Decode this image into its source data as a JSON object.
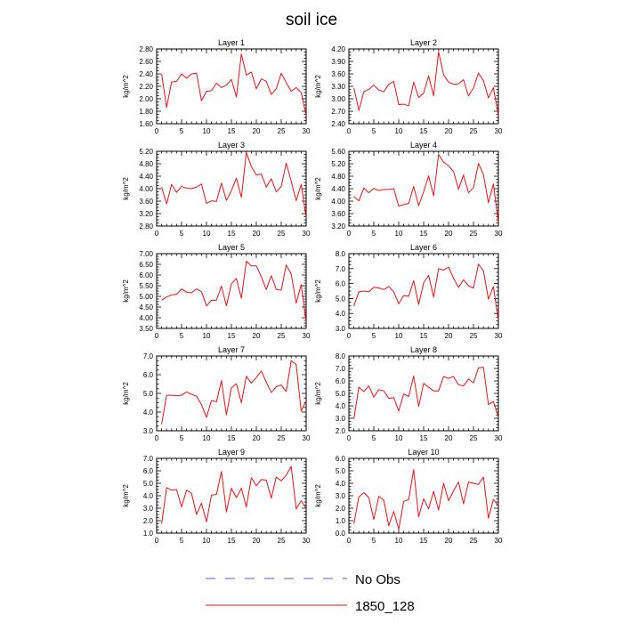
{
  "title": "soil ice",
  "legend": {
    "items": [
      {
        "label": "No Obs",
        "color": "#5555dd",
        "dashed": true
      },
      {
        "label": "1850_128",
        "color": "#ee1111",
        "dashed": false
      }
    ]
  },
  "colors": {
    "series": "#ee1111",
    "axis": "#000000"
  },
  "chart_data": [
    {
      "type": "line",
      "title": "Layer 1",
      "ylabel": "kg/m^2",
      "xlim": [
        0,
        30
      ],
      "ylim": [
        1.6,
        2.8
      ],
      "xticks": [
        "0",
        "5",
        "10",
        "15",
        "20",
        "25",
        "30"
      ],
      "yticks": [
        "1.60",
        "1.80",
        "2.00",
        "2.20",
        "2.40",
        "2.60",
        "2.80"
      ],
      "x": [
        1,
        2,
        3,
        4,
        5,
        6,
        7,
        8,
        9,
        10,
        11,
        12,
        13,
        14,
        15,
        16,
        17,
        18,
        19,
        20,
        21,
        22,
        23,
        24,
        25,
        26,
        27,
        28,
        29,
        30
      ],
      "series": [
        {
          "name": "1850_128",
          "values": [
            2.4,
            1.86,
            2.27,
            2.28,
            2.4,
            2.33,
            2.4,
            2.41,
            1.97,
            2.12,
            2.13,
            2.25,
            2.18,
            2.22,
            2.31,
            2.03,
            2.72,
            2.38,
            2.43,
            2.16,
            2.32,
            2.28,
            2.07,
            2.16,
            2.41,
            2.26,
            2.12,
            2.18,
            2.1,
            1.73
          ]
        }
      ]
    },
    {
      "type": "line",
      "title": "Layer 2",
      "ylabel": "kg/m^2",
      "xlim": [
        0,
        30
      ],
      "ylim": [
        2.4,
        4.2
      ],
      "xticks": [
        "0",
        "5",
        "10",
        "15",
        "20",
        "25",
        "30"
      ],
      "yticks": [
        "2.40",
        "2.70",
        "3.00",
        "3.30",
        "3.60",
        "3.90",
        "4.20"
      ],
      "x": [
        1,
        2,
        3,
        4,
        5,
        6,
        7,
        8,
        9,
        10,
        11,
        12,
        13,
        14,
        15,
        16,
        17,
        18,
        19,
        20,
        21,
        22,
        23,
        24,
        25,
        26,
        27,
        28,
        29,
        30
      ],
      "series": [
        {
          "name": "1850_128",
          "values": [
            3.26,
            2.72,
            3.17,
            3.23,
            3.33,
            3.21,
            3.17,
            3.35,
            3.42,
            2.86,
            2.87,
            2.83,
            3.4,
            3.03,
            3.14,
            3.55,
            3.07,
            4.13,
            3.58,
            3.4,
            3.35,
            3.36,
            3.46,
            3.07,
            3.26,
            3.62,
            3.44,
            3.02,
            3.27,
            2.6
          ]
        }
      ]
    },
    {
      "type": "line",
      "title": "Layer 3",
      "ylabel": "kg/m^2",
      "xlim": [
        0,
        30
      ],
      "ylim": [
        2.8,
        5.2
      ],
      "xticks": [
        "0",
        "5",
        "10",
        "15",
        "20",
        "25",
        "30"
      ],
      "yticks": [
        "2.80",
        "3.20",
        "3.60",
        "4.00",
        "4.40",
        "4.80",
        "5.20"
      ],
      "x": [
        1,
        2,
        3,
        4,
        5,
        6,
        7,
        8,
        9,
        10,
        11,
        12,
        13,
        14,
        15,
        16,
        17,
        18,
        19,
        20,
        21,
        22,
        23,
        24,
        25,
        26,
        27,
        28,
        29,
        30
      ],
      "series": [
        {
          "name": "1850_128",
          "values": [
            4.05,
            3.51,
            4.14,
            3.88,
            4.07,
            4.02,
            4.0,
            4.05,
            4.15,
            3.53,
            3.61,
            3.59,
            4.18,
            3.62,
            3.94,
            4.34,
            3.72,
            5.16,
            4.71,
            4.44,
            4.47,
            4.05,
            4.32,
            3.9,
            4.07,
            4.82,
            4.24,
            3.61,
            4.14,
            3.07
          ]
        }
      ]
    },
    {
      "type": "line",
      "title": "Layer 4",
      "ylabel": "kg/m^2",
      "xlim": [
        0,
        30
      ],
      "ylim": [
        3.2,
        5.6
      ],
      "xticks": [
        "0",
        "5",
        "10",
        "15",
        "20",
        "25",
        "30"
      ],
      "yticks": [
        "3.20",
        "3.60",
        "4.00",
        "4.40",
        "4.80",
        "5.20",
        "5.60"
      ],
      "x": [
        1,
        2,
        3,
        4,
        5,
        6,
        7,
        8,
        9,
        10,
        11,
        12,
        13,
        14,
        15,
        16,
        17,
        18,
        19,
        20,
        21,
        22,
        23,
        24,
        25,
        26,
        27,
        28,
        29,
        30
      ],
      "series": [
        {
          "name": "1850_128",
          "values": [
            4.15,
            4.01,
            4.42,
            4.27,
            4.41,
            4.34,
            4.37,
            4.38,
            4.4,
            3.84,
            3.89,
            3.93,
            4.47,
            3.85,
            4.3,
            4.81,
            4.17,
            5.5,
            5.25,
            5.14,
            4.95,
            4.38,
            4.84,
            4.27,
            4.43,
            5.21,
            4.85,
            3.95,
            4.55,
            3.3
          ]
        }
      ]
    },
    {
      "type": "line",
      "title": "Layer 5",
      "ylabel": "kg/m^2",
      "xlim": [
        0,
        30
      ],
      "ylim": [
        3.5,
        7.0
      ],
      "xticks": [
        "0",
        "5",
        "10",
        "15",
        "20",
        "25",
        "30"
      ],
      "yticks": [
        "3.50",
        "4.00",
        "4.50",
        "5.00",
        "5.50",
        "6.00",
        "6.50",
        "7.00"
      ],
      "x": [
        1,
        2,
        3,
        4,
        5,
        6,
        7,
        8,
        9,
        10,
        11,
        12,
        13,
        14,
        15,
        16,
        17,
        18,
        19,
        20,
        21,
        22,
        23,
        24,
        25,
        26,
        27,
        28,
        29,
        30
      ],
      "series": [
        {
          "name": "1850_128",
          "values": [
            4.82,
            4.97,
            5.07,
            5.1,
            5.35,
            5.2,
            5.17,
            5.35,
            5.22,
            4.55,
            4.82,
            4.82,
            5.48,
            4.55,
            5.59,
            5.84,
            4.91,
            6.65,
            6.43,
            6.43,
            5.92,
            5.32,
            5.97,
            5.33,
            5.29,
            6.47,
            6.05,
            4.68,
            5.55,
            3.8
          ]
        }
      ]
    },
    {
      "type": "line",
      "title": "Layer 6",
      "ylabel": "kg/m^2",
      "xlim": [
        0,
        30
      ],
      "ylim": [
        3.0,
        8.0
      ],
      "xticks": [
        "0",
        "5",
        "10",
        "15",
        "20",
        "25",
        "30"
      ],
      "yticks": [
        "3.0",
        "4.0",
        "5.0",
        "6.0",
        "7.0",
        "8.0"
      ],
      "x": [
        1,
        2,
        3,
        4,
        5,
        6,
        7,
        8,
        9,
        10,
        11,
        12,
        13,
        14,
        15,
        16,
        17,
        18,
        19,
        20,
        21,
        22,
        23,
        24,
        25,
        26,
        27,
        28,
        29,
        30
      ],
      "series": [
        {
          "name": "1850_128",
          "values": [
            4.5,
            5.45,
            5.5,
            5.45,
            5.75,
            5.7,
            5.6,
            5.8,
            5.45,
            4.65,
            5.2,
            5.15,
            6.2,
            4.6,
            6.05,
            6.55,
            5.1,
            7.0,
            6.9,
            7.1,
            6.35,
            5.75,
            6.25,
            5.85,
            5.7,
            7.3,
            6.85,
            4.95,
            5.8,
            3.5
          ]
        }
      ]
    },
    {
      "type": "line",
      "title": "Layer 7",
      "ylabel": "kg/m^2",
      "xlim": [
        0,
        30
      ],
      "ylim": [
        3.0,
        7.0
      ],
      "xticks": [
        "0",
        "5",
        "10",
        "15",
        "20",
        "25",
        "30"
      ],
      "yticks": [
        "3.0",
        "4.0",
        "5.0",
        "6.0",
        "7.0"
      ],
      "x": [
        1,
        2,
        3,
        4,
        5,
        6,
        7,
        8,
        9,
        10,
        11,
        12,
        13,
        14,
        15,
        16,
        17,
        18,
        19,
        20,
        21,
        22,
        23,
        24,
        25,
        26,
        27,
        28,
        29,
        30
      ],
      "series": [
        {
          "name": "1850_128",
          "values": [
            3.35,
            4.9,
            4.9,
            4.88,
            4.9,
            5.08,
            4.95,
            4.85,
            4.4,
            3.72,
            4.62,
            4.55,
            5.68,
            3.85,
            5.3,
            5.52,
            4.5,
            5.92,
            5.55,
            5.85,
            6.2,
            5.6,
            5.05,
            5.35,
            5.45,
            5.1,
            6.75,
            6.55,
            4.05,
            4.6
          ]
        }
      ]
    },
    {
      "type": "line",
      "title": "Layer 8",
      "ylabel": "kg/m^2",
      "xlim": [
        0,
        30
      ],
      "ylim": [
        2.0,
        8.0
      ],
      "xticks": [
        "0",
        "5",
        "10",
        "15",
        "20",
        "25",
        "30"
      ],
      "yticks": [
        "2.0",
        "3.0",
        "4.0",
        "5.0",
        "6.0",
        "7.0",
        "8.0"
      ],
      "x": [
        1,
        2,
        3,
        4,
        5,
        6,
        7,
        8,
        9,
        10,
        11,
        12,
        13,
        14,
        15,
        16,
        17,
        18,
        19,
        20,
        21,
        22,
        23,
        24,
        25,
        26,
        27,
        28,
        29,
        30
      ],
      "series": [
        {
          "name": "1850_128",
          "values": [
            2.95,
            5.5,
            5.15,
            5.6,
            4.7,
            5.3,
            5.2,
            4.6,
            4.65,
            3.6,
            4.95,
            4.75,
            6.4,
            3.95,
            5.8,
            5.5,
            5.2,
            5.2,
            6.35,
            6.2,
            6.35,
            5.7,
            5.6,
            6.15,
            5.85,
            7.05,
            7.1,
            4.1,
            4.35,
            3.1
          ]
        }
      ]
    },
    {
      "type": "line",
      "title": "Layer 9",
      "ylabel": "kg/m^2",
      "xlim": [
        0,
        30
      ],
      "ylim": [
        1.0,
        7.0
      ],
      "xticks": [
        "0",
        "5",
        "10",
        "15",
        "20",
        "25",
        "30"
      ],
      "yticks": [
        "1.0",
        "2.0",
        "3.0",
        "4.0",
        "5.0",
        "6.0",
        "7.0"
      ],
      "x": [
        1,
        2,
        3,
        4,
        5,
        6,
        7,
        8,
        9,
        10,
        11,
        12,
        13,
        14,
        15,
        16,
        17,
        18,
        19,
        20,
        21,
        22,
        23,
        24,
        25,
        26,
        27,
        28,
        29,
        30
      ],
      "series": [
        {
          "name": "1850_128",
          "values": [
            1.75,
            4.65,
            4.45,
            4.5,
            3.1,
            4.45,
            4.2,
            2.5,
            3.4,
            1.9,
            4.05,
            4.1,
            5.95,
            2.7,
            4.6,
            3.85,
            4.6,
            3.1,
            5.45,
            4.8,
            5.3,
            5.25,
            3.8,
            5.5,
            5.2,
            5.65,
            6.35,
            2.95,
            3.6,
            2.95
          ]
        }
      ]
    },
    {
      "type": "line",
      "title": "Layer 10",
      "ylabel": "kg/m^2",
      "xlim": [
        0,
        30
      ],
      "ylim": [
        0.0,
        6.0
      ],
      "xticks": [
        "0",
        "5",
        "10",
        "15",
        "20",
        "25",
        "30"
      ],
      "yticks": [
        "0.0",
        "1.0",
        "2.0",
        "3.0",
        "4.0",
        "5.0",
        "6.0"
      ],
      "x": [
        1,
        2,
        3,
        4,
        5,
        6,
        7,
        8,
        9,
        10,
        11,
        12,
        13,
        14,
        15,
        16,
        17,
        18,
        19,
        20,
        21,
        22,
        23,
        24,
        25,
        26,
        27,
        28,
        29,
        30
      ],
      "series": [
        {
          "name": "1850_128",
          "values": [
            0.75,
            2.9,
            3.25,
            2.85,
            1.1,
            2.95,
            2.65,
            0.6,
            1.75,
            0.3,
            2.55,
            2.7,
            5.1,
            1.3,
            2.75,
            1.95,
            3.35,
            1.85,
            4.0,
            2.6,
            3.4,
            4.1,
            2.35,
            4.1,
            4.0,
            3.9,
            4.5,
            1.2,
            2.7,
            2.2
          ]
        }
      ]
    }
  ]
}
